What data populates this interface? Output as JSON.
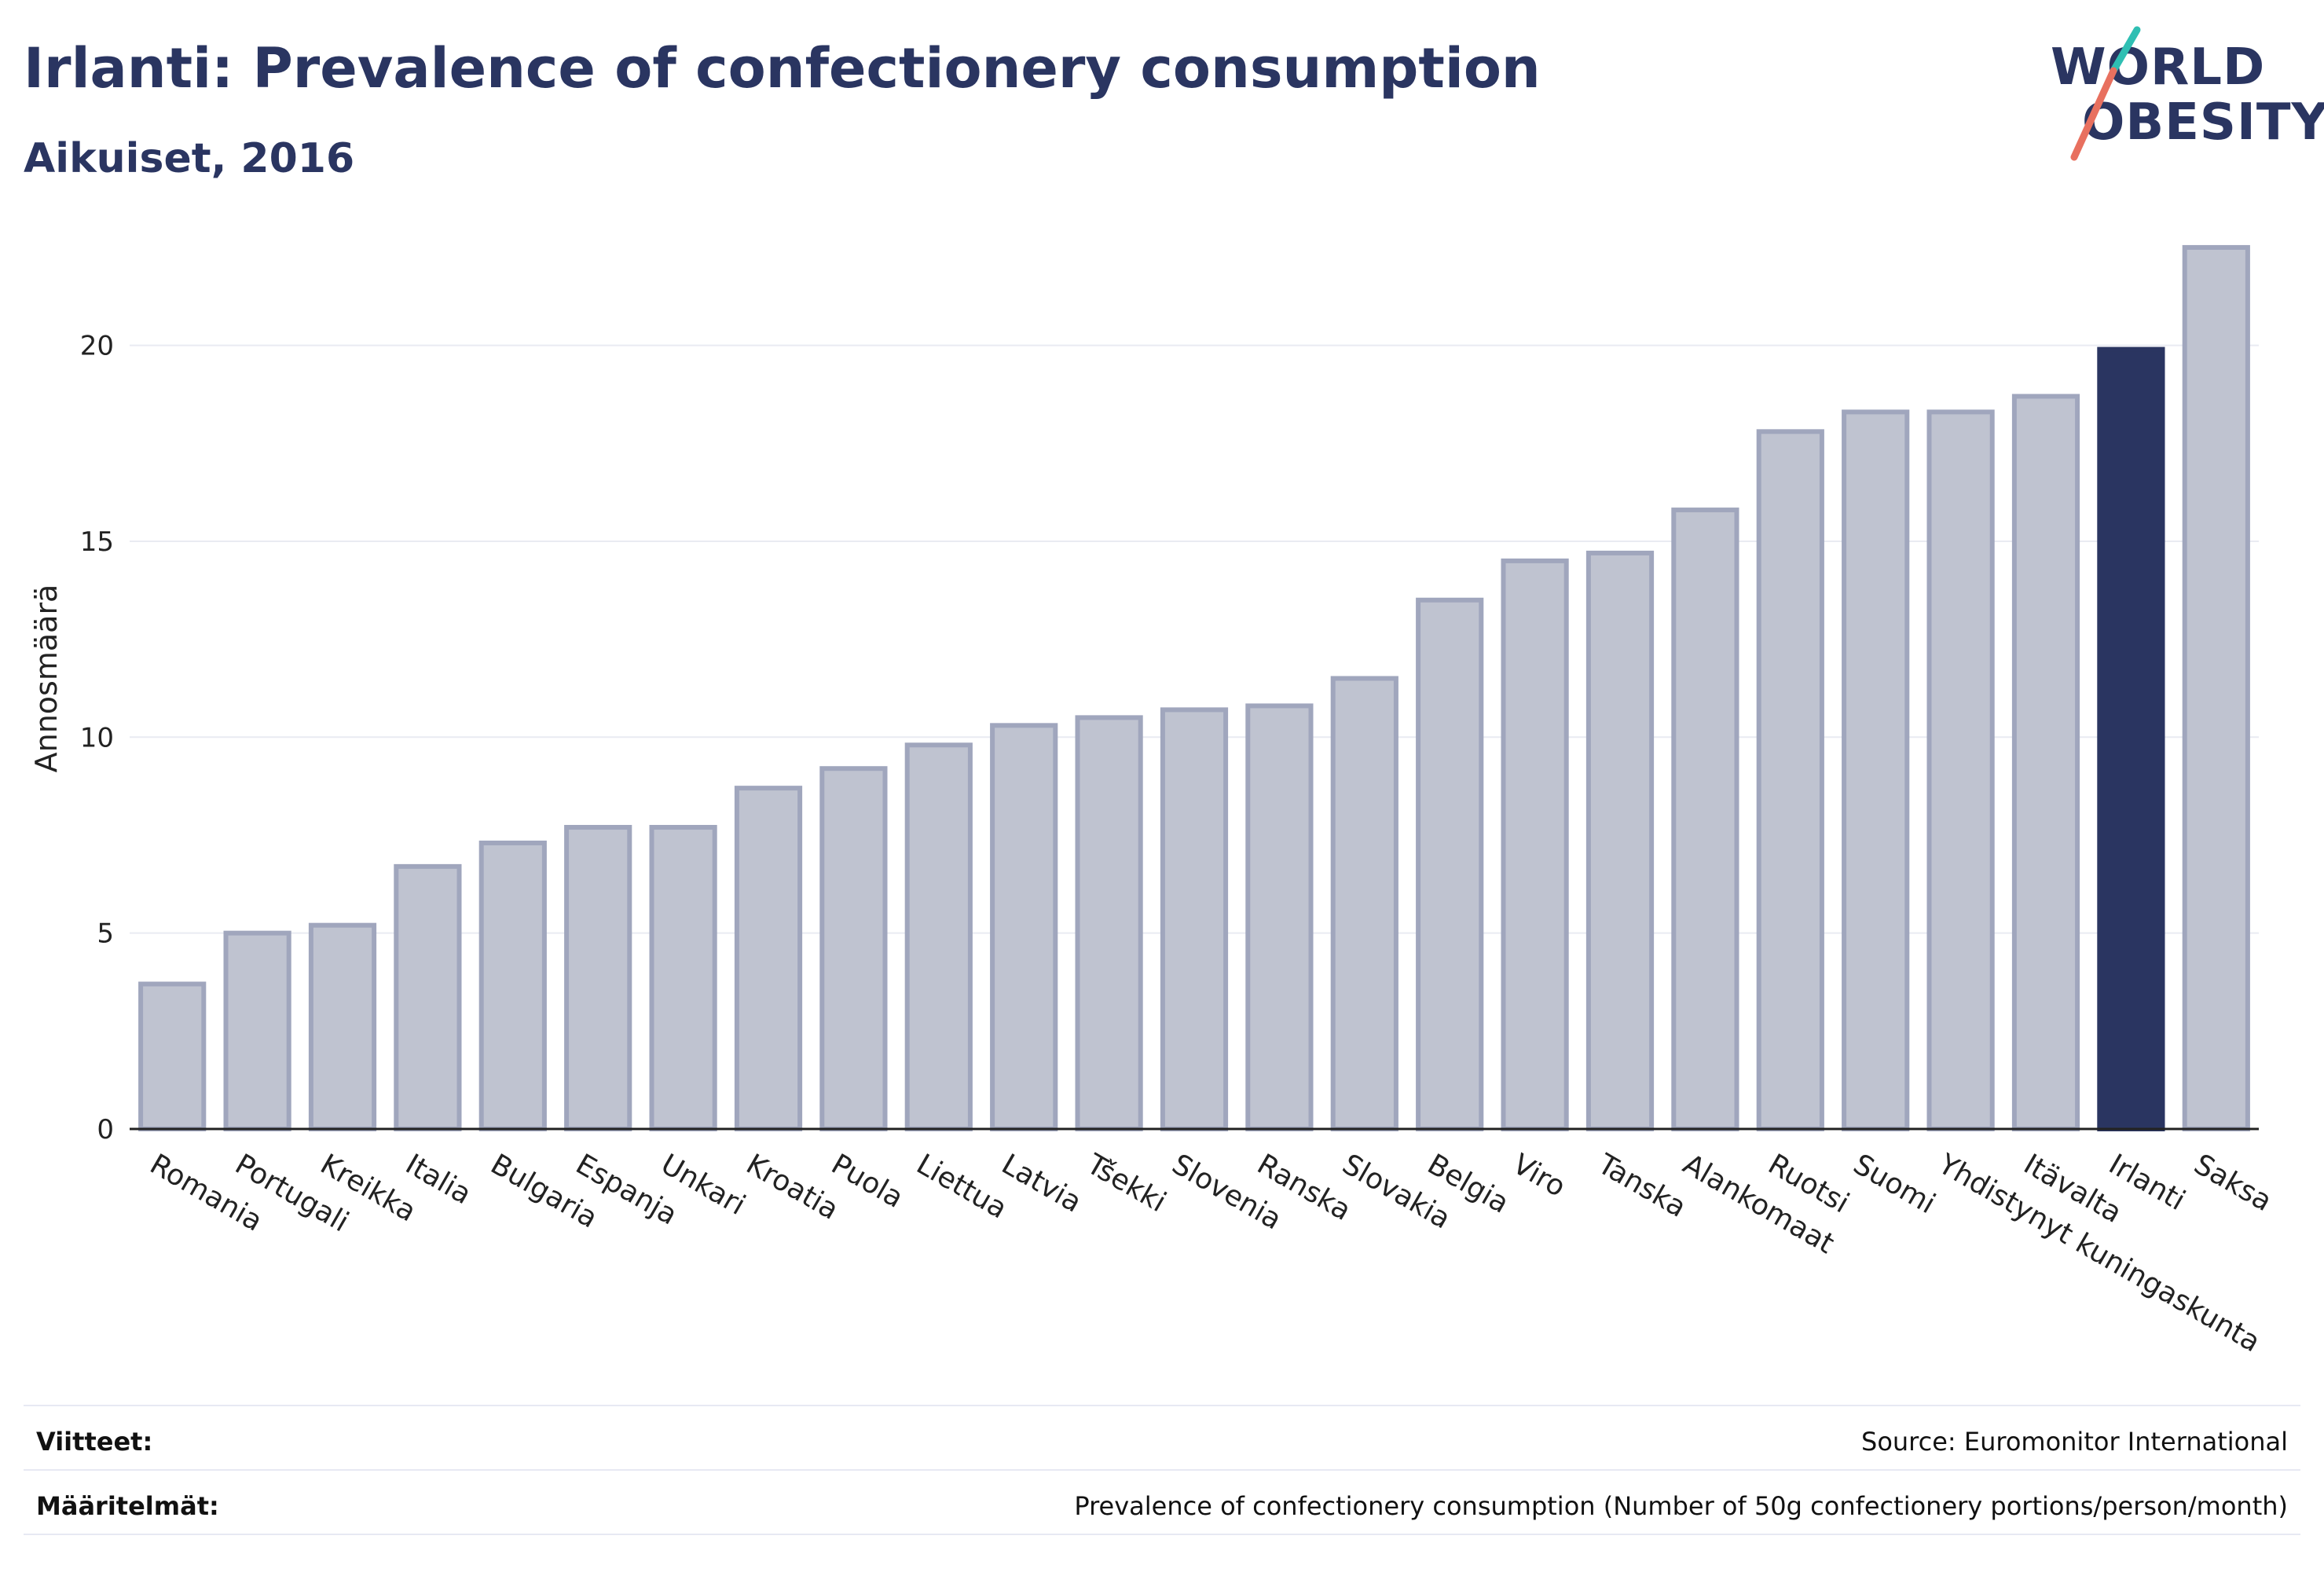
{
  "header": {
    "title": "Irlanti: Prevalence of confectionery consumption",
    "subtitle": "Aikuiset, 2016"
  },
  "logo": {
    "line1": "WORLD",
    "line2": "OBESITY"
  },
  "colors": {
    "bar_default": "#bfc3d0",
    "bar_default_stroke": "#a0a6bd",
    "bar_highlight": "#2a3561",
    "text": "#2a3561",
    "grid": "#e9ebf2",
    "logo_accent_teal": "#2fbfb3",
    "logo_accent_coral": "#e8705f"
  },
  "chart_data": {
    "type": "bar",
    "title": "",
    "xlabel": "",
    "ylabel": "Annosmäärä",
    "ylim": [
      0,
      23
    ],
    "yticks": [
      0,
      5,
      10,
      15,
      20
    ],
    "grid": true,
    "categories": [
      "Romania",
      "Portugali",
      "Kreikka",
      "Italia",
      "Bulgaria",
      "Espanja",
      "Unkari",
      "Kroatia",
      "Puola",
      "Liettua",
      "Latvia",
      "Tšekki",
      "Slovenia",
      "Ranska",
      "Slovakia",
      "Belgia",
      "Viro",
      "Tanska",
      "Alankomaat",
      "Ruotsi",
      "Suomi",
      "Yhdistynyt kuningaskunta",
      "Itävalta",
      "Irlanti",
      "Saksa"
    ],
    "values": [
      3.7,
      5.0,
      5.2,
      6.7,
      7.3,
      7.7,
      7.7,
      8.7,
      9.2,
      9.8,
      10.3,
      10.5,
      10.7,
      10.8,
      11.5,
      13.5,
      14.5,
      14.7,
      15.8,
      17.8,
      18.3,
      18.3,
      18.7,
      19.9,
      22.5
    ],
    "highlight": "Irlanti"
  },
  "footer": {
    "references_label": "Viitteet:",
    "references_value": "Source: Euromonitor International",
    "definitions_label": "Määritelmät:",
    "definitions_value": "Prevalence of confectionery consumption (Number of 50g confectionery portions/person/month)"
  }
}
